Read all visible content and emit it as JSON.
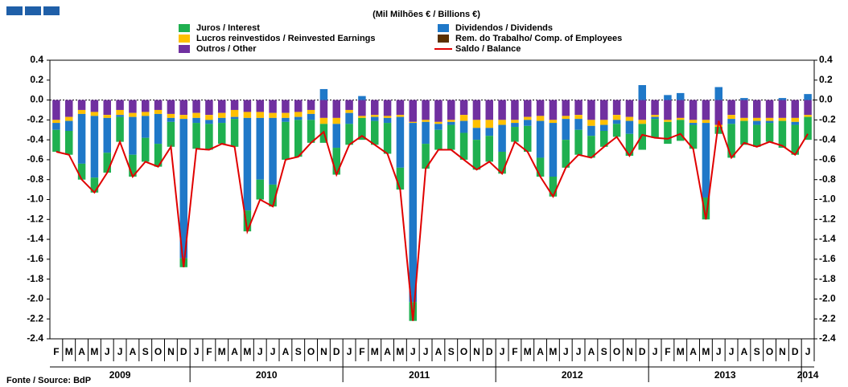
{
  "chart_data": {
    "type": "bar",
    "stacked": true,
    "subtitle": "(Mil Milhões € / Billions €)",
    "source": "Fonte / Source: BdP",
    "categories": [
      "F",
      "M",
      "A",
      "M",
      "J",
      "J",
      "A",
      "S",
      "O",
      "N",
      "D",
      "J",
      "F",
      "M",
      "A",
      "M",
      "J",
      "J",
      "A",
      "S",
      "O",
      "N",
      "D",
      "J",
      "F",
      "M",
      "A",
      "M",
      "J",
      "J",
      "A",
      "S",
      "O",
      "N",
      "D",
      "J",
      "F",
      "M",
      "A",
      "M",
      "J",
      "J",
      "A",
      "S",
      "O",
      "N",
      "D",
      "J",
      "F",
      "M",
      "A",
      "M",
      "J",
      "J",
      "A",
      "S",
      "O",
      "N",
      "D",
      "J"
    ],
    "years": [
      "2009",
      "2010",
      "2011",
      "2012",
      "2013",
      "2014"
    ],
    "ylim": [
      -2.4,
      0.4
    ],
    "yticks": [
      -2.4,
      -2.2,
      {
        "value": -2.0,
        "label": "-2.0"
      },
      -1.8,
      -1.6,
      -1.4,
      -1.2,
      {
        "value": -1.0,
        "label": "-1.0"
      },
      -0.8,
      -0.6,
      -0.4,
      -0.2,
      {
        "value": 0,
        "label": "0.0"
      },
      0.2,
      0.4
    ],
    "series": [
      {
        "name": "Juros / Interest",
        "color": "#1fb050",
        "values": [
          -0.22,
          -0.24,
          -0.16,
          -0.15,
          -0.2,
          -0.25,
          -0.22,
          -0.24,
          -0.23,
          -0.25,
          -0.09,
          -0.26,
          -0.26,
          -0.21,
          -0.28,
          -0.21,
          -0.2,
          -0.22,
          -0.38,
          -0.37,
          -0.23,
          -0.19,
          -0.27,
          -0.21,
          -0.22,
          -0.24,
          -0.31,
          -0.22,
          -0.19,
          -0.25,
          -0.2,
          -0.25,
          -0.27,
          -0.3,
          -0.26,
          -0.22,
          -0.15,
          -0.26,
          -0.19,
          -0.2,
          -0.28,
          -0.25,
          -0.22,
          -0.16,
          -0.13,
          -0.22,
          -0.26,
          -0.19,
          -0.22,
          -0.21,
          -0.24,
          -0.22,
          -0.07,
          -0.34,
          -0.24,
          -0.22,
          -0.19,
          -0.27,
          -0.3,
          -0.23
        ]
      },
      {
        "name": "Dividendos / Dividends",
        "color": "#1f78c8",
        "values": [
          -0.07,
          -0.1,
          -0.5,
          -0.62,
          -0.35,
          -0.02,
          -0.38,
          -0.22,
          -0.3,
          -0.04,
          -1.4,
          -0.05,
          -0.04,
          -0.05,
          -0.02,
          -0.93,
          -0.62,
          -0.67,
          -0.04,
          -0.03,
          -0.06,
          0.11,
          -0.24,
          -0.11,
          0.04,
          -0.04,
          -0.05,
          -0.51,
          -1.8,
          -0.22,
          -0.06,
          -0.03,
          -0.12,
          -0.12,
          -0.08,
          -0.27,
          -0.04,
          -0.06,
          -0.37,
          -0.54,
          -0.21,
          -0.11,
          -0.1,
          -0.06,
          -0.04,
          -0.13,
          0.15,
          -0.02,
          0.05,
          0.07,
          -0.02,
          -0.75,
          0.13,
          -0.05,
          0.02,
          -0.04,
          -0.02,
          0.02,
          -0.03,
          0.06
        ]
      },
      {
        "name": "Lucros reinvestidos / Reinvested Earnings",
        "color": "#ffc000",
        "values": [
          -0.03,
          -0.04,
          -0.04,
          -0.04,
          -0.03,
          -0.05,
          -0.04,
          -0.04,
          -0.04,
          -0.04,
          -0.04,
          -0.05,
          -0.05,
          -0.05,
          -0.07,
          -0.06,
          -0.06,
          -0.05,
          -0.05,
          -0.05,
          -0.04,
          -0.06,
          -0.06,
          -0.03,
          -0.02,
          -0.02,
          -0.02,
          -0.02,
          -0.01,
          -0.02,
          -0.02,
          -0.02,
          -0.06,
          -0.08,
          -0.08,
          -0.05,
          -0.03,
          -0.03,
          -0.05,
          -0.03,
          -0.03,
          -0.04,
          -0.06,
          -0.05,
          -0.05,
          -0.04,
          -0.04,
          -0.02,
          -0.02,
          -0.02,
          -0.03,
          -0.03,
          -0.02,
          -0.04,
          -0.03,
          -0.03,
          -0.03,
          -0.03,
          -0.04,
          -0.02
        ]
      },
      {
        "name": "Rem. do Trabalho/ Comp. of Employees",
        "color": "#5a3000",
        "values": [
          0,
          0,
          0,
          0,
          0,
          0,
          0,
          0,
          0,
          0,
          0,
          0,
          0,
          0,
          0,
          0,
          0,
          0,
          0,
          0,
          0,
          0,
          0,
          0,
          0,
          0,
          0,
          0,
          0,
          0,
          0,
          0,
          0,
          0,
          0,
          0,
          0,
          0,
          0,
          0,
          0,
          0,
          0,
          0,
          0,
          0,
          0,
          0,
          0,
          0,
          0,
          0,
          0,
          0,
          0,
          0,
          0,
          0,
          0,
          0
        ]
      },
      {
        "name": "Outros / Other",
        "color": "#7030a0",
        "values": [
          -0.2,
          -0.17,
          -0.1,
          -0.12,
          -0.15,
          -0.1,
          -0.13,
          -0.12,
          -0.1,
          -0.14,
          -0.15,
          -0.13,
          -0.15,
          -0.13,
          -0.1,
          -0.12,
          -0.12,
          -0.13,
          -0.13,
          -0.12,
          -0.1,
          -0.18,
          -0.18,
          -0.1,
          -0.16,
          -0.15,
          -0.16,
          -0.15,
          -0.22,
          -0.2,
          -0.22,
          -0.2,
          -0.15,
          -0.2,
          -0.2,
          -0.2,
          -0.2,
          -0.17,
          -0.16,
          -0.2,
          -0.16,
          -0.15,
          -0.2,
          -0.2,
          -0.15,
          -0.17,
          -0.2,
          -0.15,
          -0.2,
          -0.18,
          -0.2,
          -0.2,
          -0.25,
          -0.15,
          -0.18,
          -0.18,
          -0.18,
          -0.18,
          -0.18,
          -0.15
        ]
      },
      {
        "name": "Saldo / Balance",
        "type": "line",
        "color": "#e00000",
        "values": [
          -0.52,
          -0.55,
          -0.8,
          -0.93,
          -0.73,
          -0.42,
          -0.77,
          -0.62,
          -0.67,
          -0.47,
          -1.68,
          -0.49,
          -0.5,
          -0.44,
          -0.47,
          -1.32,
          -1.0,
          -1.07,
          -0.6,
          -0.57,
          -0.43,
          -0.32,
          -0.75,
          -0.45,
          -0.36,
          -0.45,
          -0.54,
          -0.9,
          -2.22,
          -0.69,
          -0.5,
          -0.5,
          -0.6,
          -0.7,
          -0.62,
          -0.74,
          -0.42,
          -0.52,
          -0.77,
          -0.97,
          -0.68,
          -0.55,
          -0.58,
          -0.47,
          -0.37,
          -0.56,
          -0.35,
          -0.38,
          -0.39,
          -0.34,
          -0.49,
          -1.2,
          -0.21,
          -0.58,
          -0.43,
          -0.47,
          -0.42,
          -0.46,
          -0.55,
          -0.34
        ]
      }
    ]
  }
}
